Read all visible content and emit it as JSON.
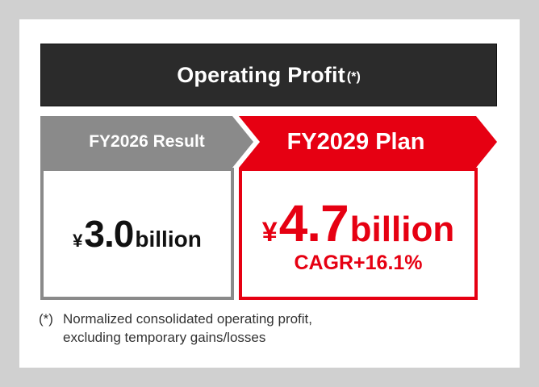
{
  "title": {
    "main": "Operating Profit",
    "note": "(*)"
  },
  "colors": {
    "dark": "#2b2b2b",
    "gray": "#8a8a8a",
    "red": "#e60012"
  },
  "result": {
    "label": "FY2026 Result",
    "yen": "¥",
    "value": "3.0",
    "unit": "billion"
  },
  "plan": {
    "label": "FY2029 Plan",
    "yen": "¥",
    "value": "4.7",
    "unit": "billion",
    "cagr": "CAGR+16.1%"
  },
  "footnote": {
    "mark": "(*)",
    "line1": "Normalized consolidated operating profit,",
    "line2": "excluding temporary gains/losses"
  }
}
